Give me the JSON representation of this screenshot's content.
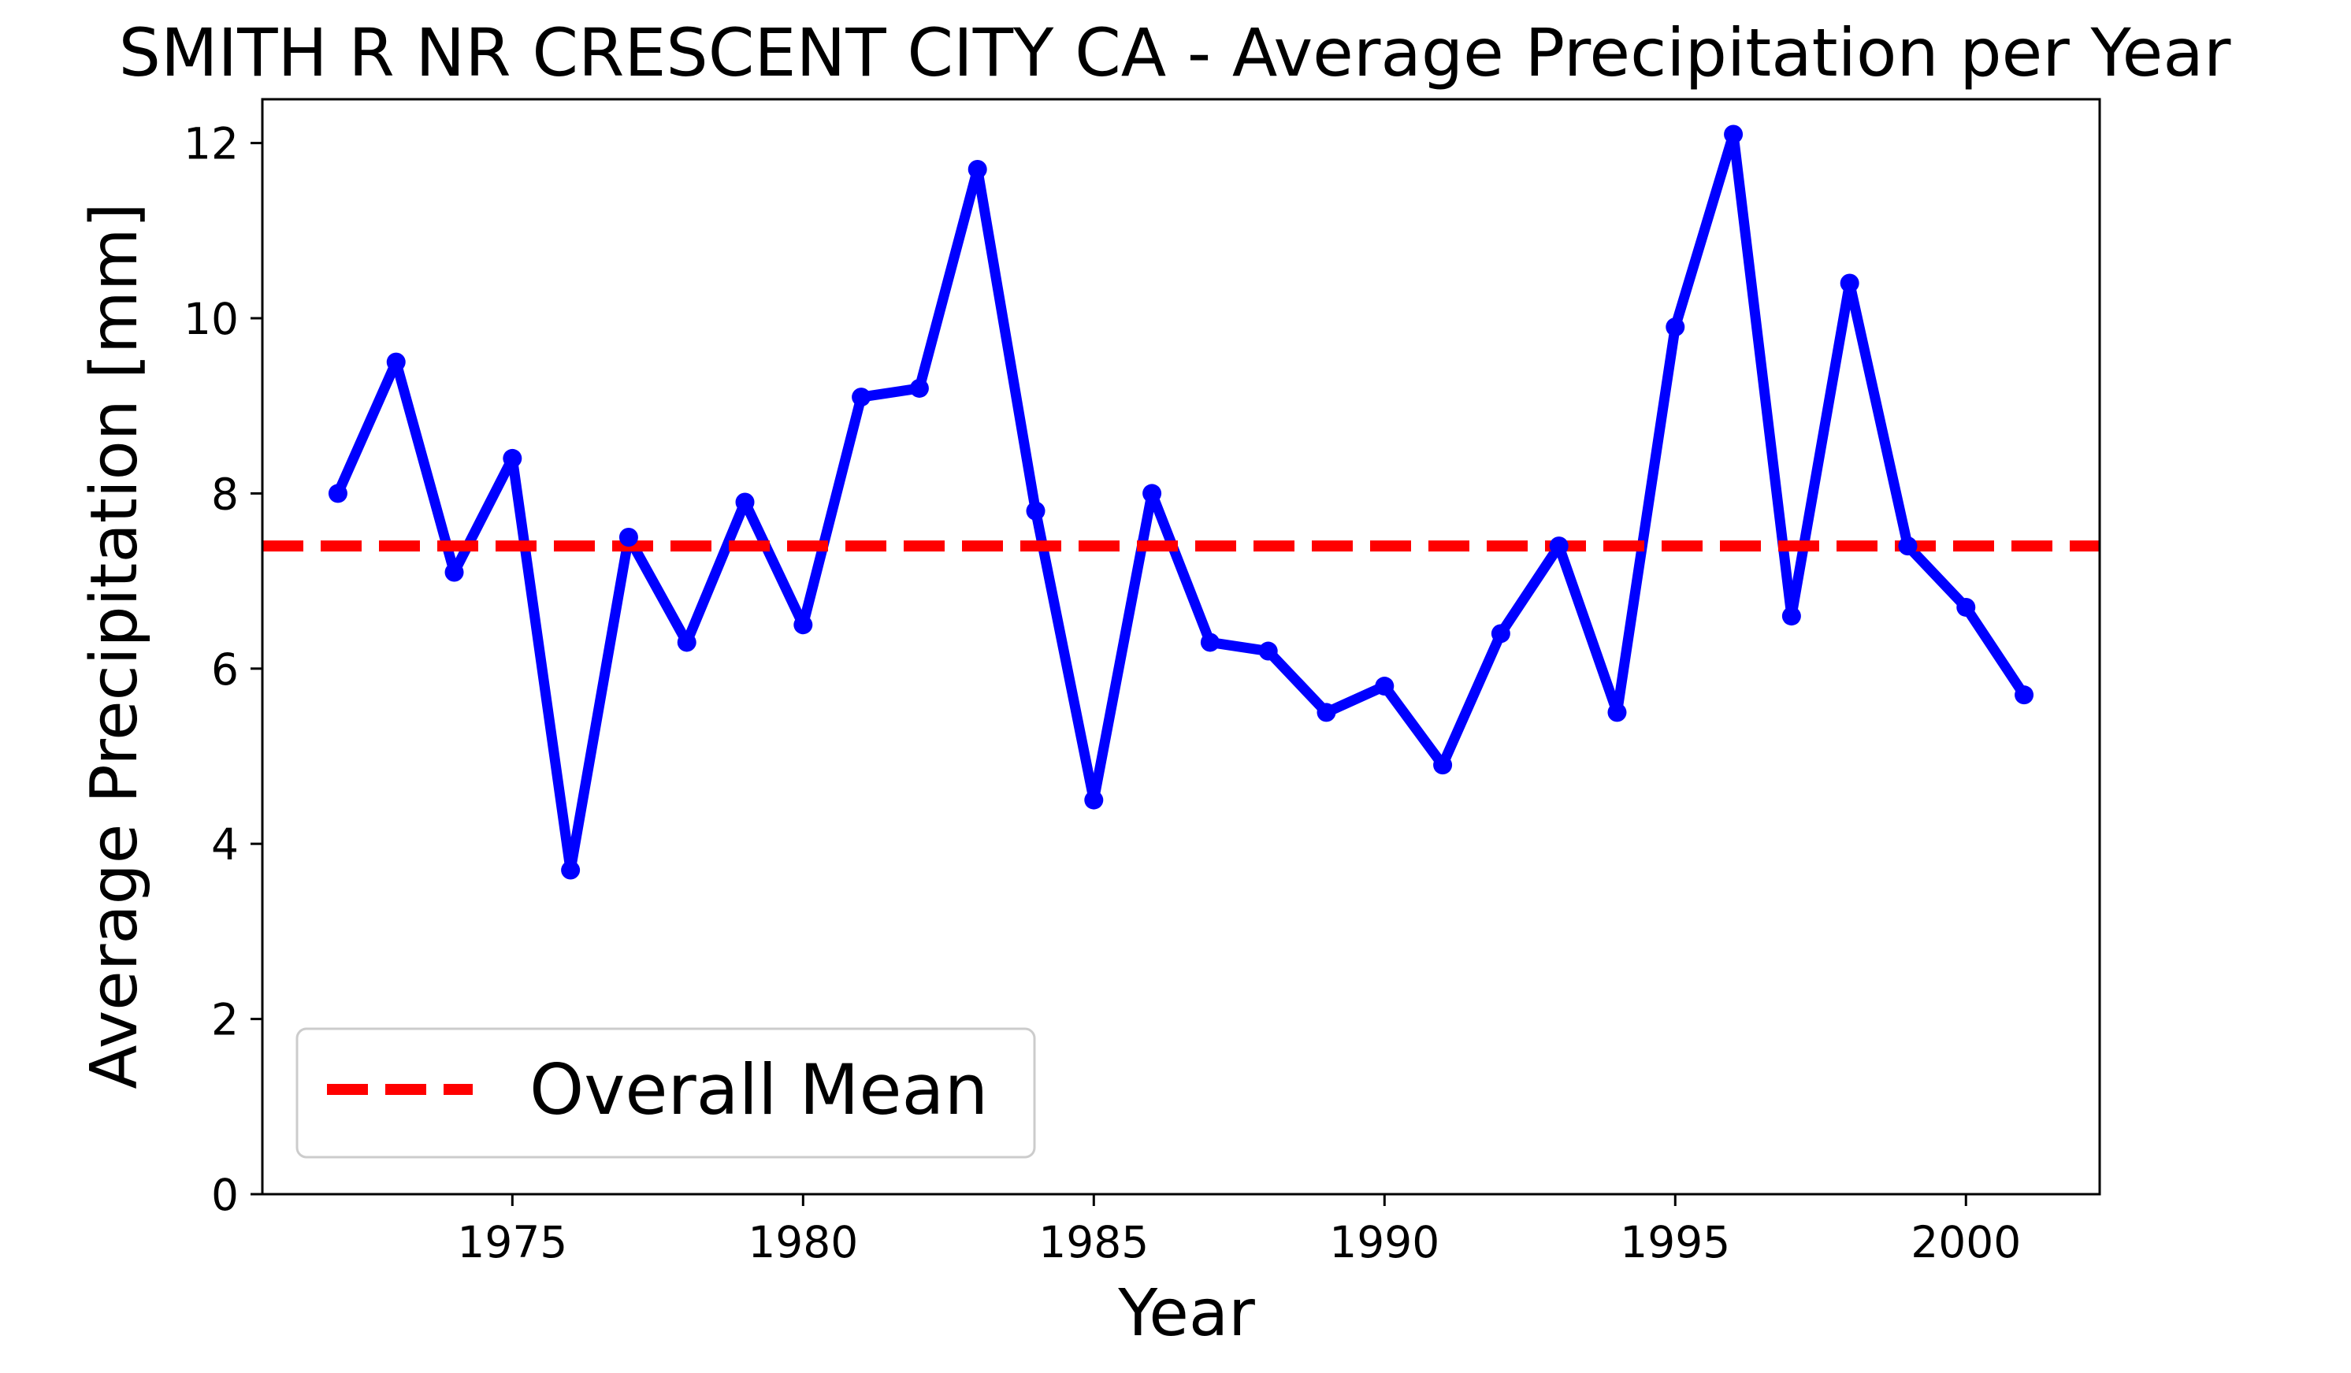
{
  "chart_data": {
    "type": "line",
    "title": "SMITH R NR CRESCENT CITY CA - Average Precipitation per Year",
    "xlabel": "Year",
    "ylabel": "Average Precipitation [mm]",
    "xlim": [
      1970.7,
      2002.3
    ],
    "ylim": [
      0,
      12.5
    ],
    "xticks": [
      1975,
      1980,
      1985,
      1990,
      1995,
      2000
    ],
    "yticks": [
      0,
      2,
      4,
      6,
      8,
      10,
      12
    ],
    "grid": false,
    "legend_position": "lower-left",
    "series": [
      {
        "kind": "line-markers",
        "color": "#0000ff",
        "x": [
          1972,
          1973,
          1974,
          1975,
          1976,
          1977,
          1978,
          1979,
          1980,
          1981,
          1982,
          1983,
          1984,
          1985,
          1986,
          1987,
          1988,
          1989,
          1990,
          1991,
          1992,
          1993,
          1994,
          1995,
          1996,
          1997,
          1998,
          1999,
          2000,
          2001
        ],
        "y": [
          8.0,
          9.5,
          7.1,
          8.4,
          3.7,
          7.5,
          6.3,
          7.9,
          6.5,
          9.1,
          9.2,
          11.7,
          7.8,
          4.5,
          8.0,
          6.3,
          6.2,
          5.5,
          5.8,
          4.9,
          6.4,
          7.4,
          5.5,
          9.9,
          12.1,
          6.6,
          10.4,
          7.4,
          6.7,
          5.7
        ]
      },
      {
        "name": "Overall Mean",
        "kind": "hline-dashed",
        "color": "#ff0000",
        "y": 7.4
      }
    ]
  }
}
